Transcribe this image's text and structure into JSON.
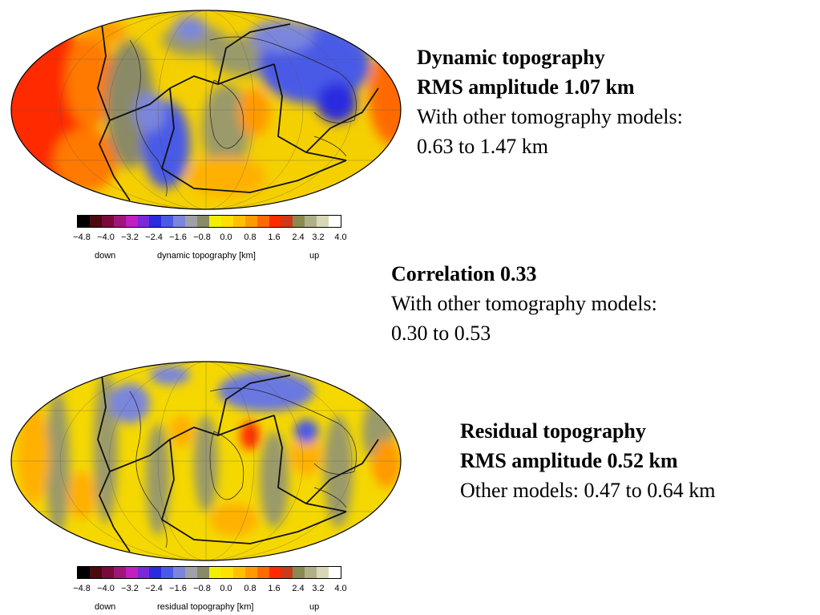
{
  "dynamic": {
    "title": "Dynamic topography",
    "rms": "RMS amplitude 1.07 km",
    "other_label": "With other tomography models:",
    "other_range": "0.63 to 1.47 km"
  },
  "correlation": {
    "title": "Correlation 0.33",
    "other_label": "With other tomography models:",
    "other_range": "0.30 to 0.53"
  },
  "residual": {
    "title": "Residual topography",
    "rms": "RMS amplitude 0.52 km",
    "other": "Other models: 0.47 to 0.64 km"
  },
  "colorbar_top": {
    "ticks": [
      "−4.8",
      "−4.0",
      "−3.2",
      "−2.4",
      "−1.6",
      "−0.8",
      "0.0",
      "0.8",
      "1.6",
      "2.4",
      "3.2",
      "4.0"
    ],
    "down": "down",
    "label": "dynamic topography [km]",
    "up": "up"
  },
  "colorbar_bottom": {
    "ticks": [
      "−4.8",
      "−4.0",
      "−3.2",
      "−2.4",
      "−1.6",
      "−0.8",
      "0.0",
      "0.8",
      "1.6",
      "2.4",
      "3.2",
      "4.0"
    ],
    "down": "down",
    "label": "residual topography [km]",
    "up": "up"
  },
  "palette": [
    "#000000",
    "#4a0a10",
    "#7a0a3a",
    "#a0157a",
    "#c21ec2",
    "#7a28d8",
    "#2a2ae0",
    "#4a5ae6",
    "#7a86dc",
    "#a0a0a8",
    "#8a8a66",
    "#f0f000",
    "#ffe000",
    "#ffc000",
    "#ff9a00",
    "#ff6a00",
    "#ff2a00",
    "#cc3a1a",
    "#8a8a50",
    "#b0b088",
    "#d8d8b8",
    "#ffffff"
  ]
}
